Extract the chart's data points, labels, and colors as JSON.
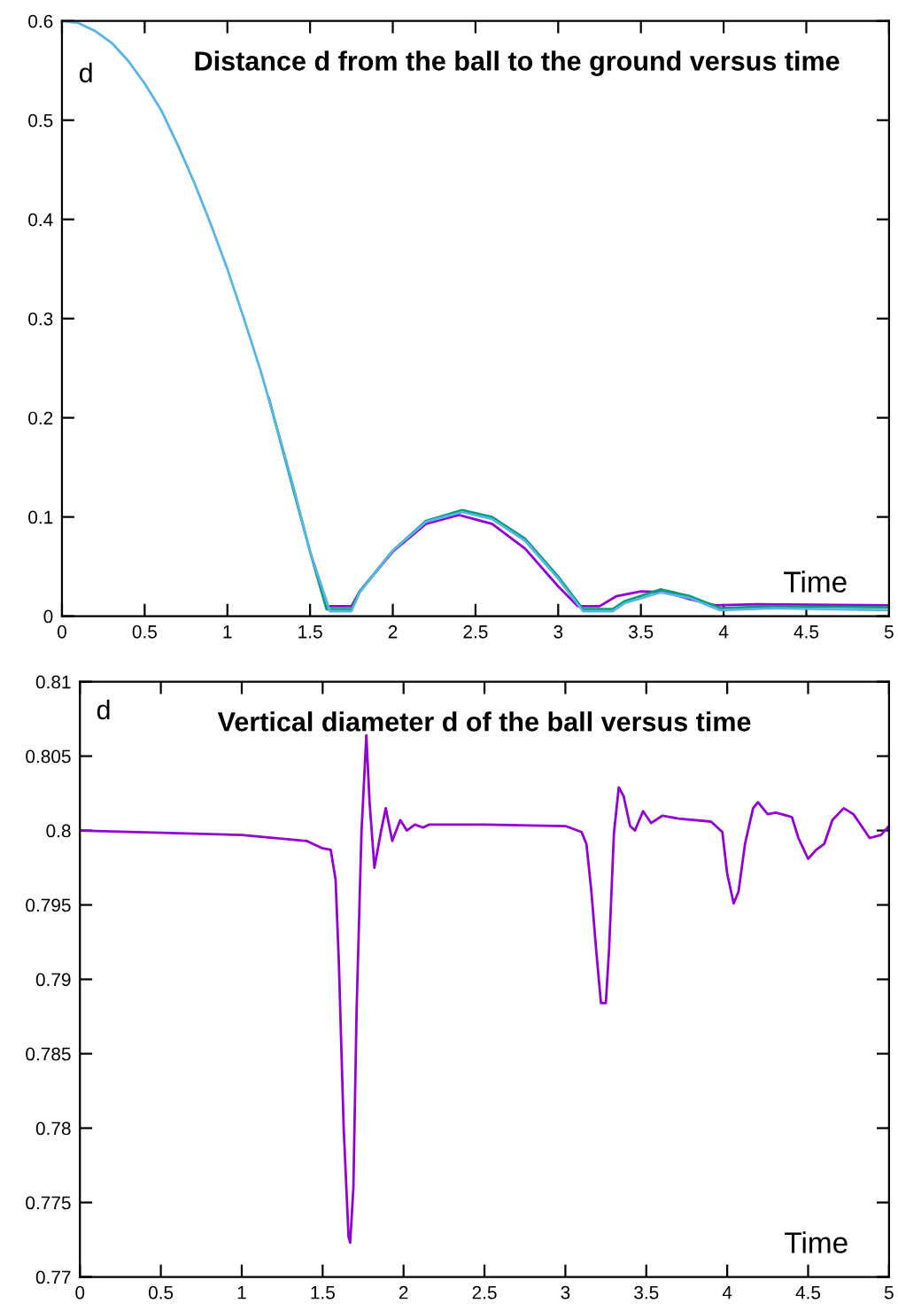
{
  "chart_data": [
    {
      "type": "line",
      "title": "Distance d from the ball to the ground versus time",
      "xlabel": "Time",
      "ylabel": "d",
      "xlim": [
        0,
        5
      ],
      "ylim": [
        0,
        0.6
      ],
      "xticks": [
        0,
        0.5,
        1,
        1.5,
        2,
        2.5,
        3,
        3.5,
        4,
        4.5,
        5
      ],
      "yticks": [
        0,
        0.1,
        0.2,
        0.3,
        0.4,
        0.5,
        0.6
      ],
      "grid": false,
      "legend": false,
      "series": [
        {
          "color": "#9400d3",
          "x": [
            1.6,
            1.75,
            1.8,
            2.0,
            2.2,
            2.4,
            2.6,
            2.8,
            3.0,
            3.12,
            3.25,
            3.35,
            3.5,
            3.65,
            3.8,
            3.95,
            4.2,
            5
          ],
          "values": [
            0.01,
            0.01,
            0.025,
            0.065,
            0.093,
            0.102,
            0.093,
            0.068,
            0.03,
            0.01,
            0.01,
            0.02,
            0.025,
            0.024,
            0.017,
            0.011,
            0.012,
            0.011
          ]
        },
        {
          "color": "#009e73",
          "x": [
            1.25,
            1.5,
            1.6,
            1.75,
            1.8,
            2.0,
            2.2,
            2.42,
            2.6,
            2.8,
            3.0,
            3.15,
            3.33,
            3.4,
            3.62,
            3.8,
            3.98,
            4.3,
            5
          ],
          "values": [
            0.22,
            0.065,
            0.007,
            0.007,
            0.025,
            0.066,
            0.096,
            0.107,
            0.1,
            0.078,
            0.04,
            0.007,
            0.007,
            0.015,
            0.027,
            0.02,
            0.008,
            0.01,
            0.009
          ]
        },
        {
          "color": "#56b4e9",
          "x": [
            0,
            0.1,
            0.2,
            0.3,
            0.4,
            0.5,
            0.6,
            0.7,
            0.8,
            0.9,
            1.0,
            1.1,
            1.2,
            1.3,
            1.4,
            1.5,
            1.62,
            1.75,
            1.8,
            2.0,
            2.2,
            2.42,
            2.6,
            2.8,
            3.0,
            3.15,
            3.33,
            3.4,
            3.62,
            3.8,
            3.98,
            4.3,
            5
          ],
          "values": [
            0.6,
            0.598,
            0.59,
            0.578,
            0.56,
            0.537,
            0.51,
            0.475,
            0.437,
            0.395,
            0.35,
            0.3,
            0.248,
            0.19,
            0.13,
            0.065,
            0.005,
            0.005,
            0.024,
            0.066,
            0.095,
            0.105,
            0.098,
            0.076,
            0.038,
            0.005,
            0.005,
            0.013,
            0.024,
            0.018,
            0.006,
            0.008,
            0.006
          ]
        }
      ]
    },
    {
      "type": "line",
      "title": "Vertical diameter d of the ball versus time",
      "xlabel": "Time",
      "ylabel": "d",
      "xlim": [
        0,
        5
      ],
      "ylim": [
        0.77,
        0.81
      ],
      "xticks": [
        0,
        0.5,
        1,
        1.5,
        2,
        2.5,
        3,
        3.5,
        4,
        4.5,
        5
      ],
      "yticks": [
        0.77,
        0.775,
        0.78,
        0.785,
        0.79,
        0.795,
        0.8,
        0.805,
        0.81
      ],
      "grid": false,
      "legend": false,
      "series": [
        {
          "color": "#9400d3",
          "x": [
            0,
            1.0,
            1.4,
            1.5,
            1.55,
            1.58,
            1.6,
            1.63,
            1.66,
            1.67,
            1.69,
            1.71,
            1.74,
            1.77,
            1.79,
            1.82,
            1.86,
            1.89,
            1.93,
            1.98,
            2.02,
            2.07,
            2.12,
            2.16,
            2.5,
            3.0,
            3.1,
            3.13,
            3.16,
            3.19,
            3.22,
            3.25,
            3.27,
            3.3,
            3.33,
            3.36,
            3.4,
            3.43,
            3.48,
            3.53,
            3.6,
            3.7,
            3.9,
            3.97,
            4.0,
            4.04,
            4.07,
            4.11,
            4.16,
            4.19,
            4.25,
            4.3,
            4.37,
            4.4,
            4.44,
            4.5,
            4.55,
            4.6,
            4.65,
            4.72,
            4.78,
            4.83,
            4.88,
            4.95,
            5.0
          ],
          "values": [
            0.8,
            0.7997,
            0.7993,
            0.7988,
            0.7987,
            0.7967,
            0.7912,
            0.78,
            0.7727,
            0.7723,
            0.776,
            0.788,
            0.7999,
            0.8064,
            0.8019,
            0.7975,
            0.7999,
            0.8015,
            0.7993,
            0.8007,
            0.8,
            0.8004,
            0.8002,
            0.8004,
            0.8004,
            0.8003,
            0.7999,
            0.7991,
            0.796,
            0.792,
            0.7884,
            0.7884,
            0.792,
            0.7998,
            0.8029,
            0.8023,
            0.8003,
            0.8,
            0.8013,
            0.8005,
            0.801,
            0.8008,
            0.8006,
            0.7999,
            0.7971,
            0.7951,
            0.7959,
            0.7991,
            0.8015,
            0.8019,
            0.8011,
            0.8012,
            0.801,
            0.8009,
            0.7995,
            0.7981,
            0.7987,
            0.7991,
            0.8007,
            0.8015,
            0.8011,
            0.8003,
            0.7995,
            0.7997,
            0.8003
          ]
        }
      ]
    }
  ]
}
